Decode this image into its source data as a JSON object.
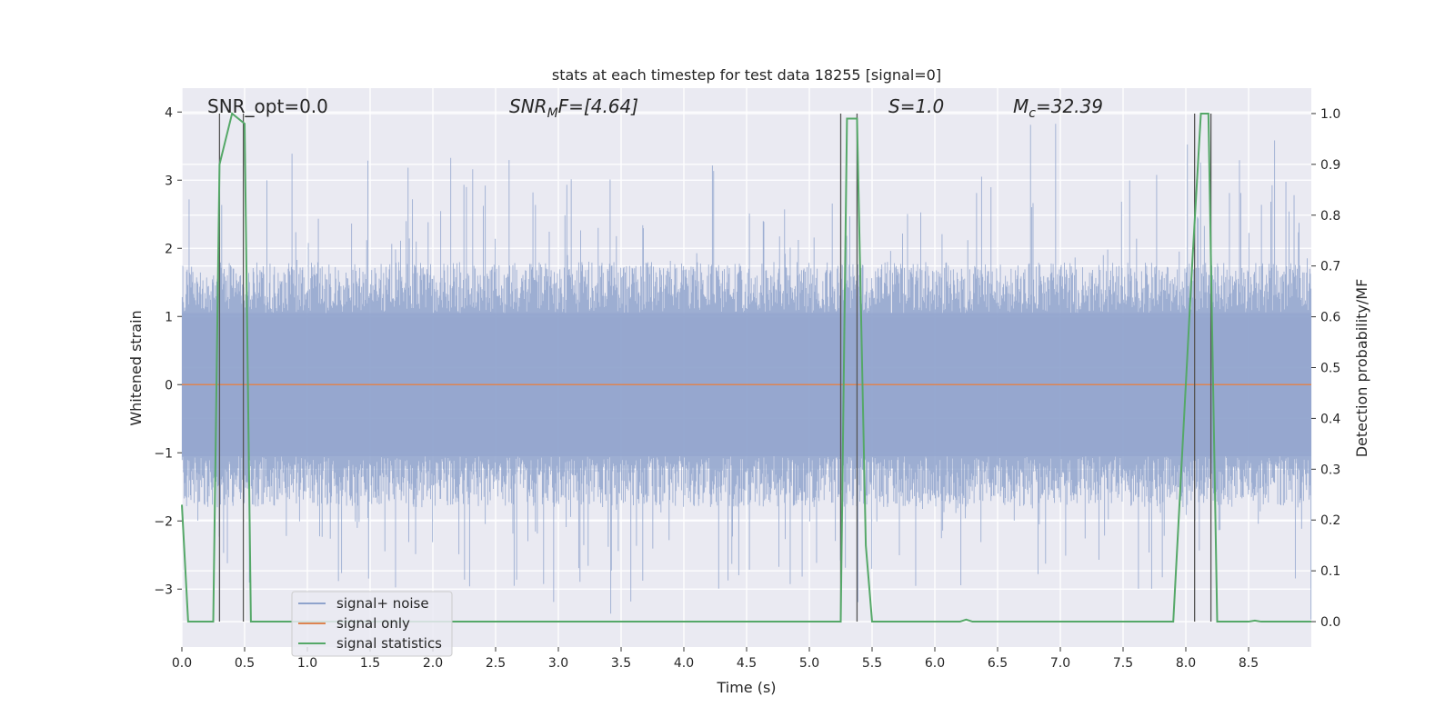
{
  "chart_data": {
    "type": "line",
    "title": "stats at each timestep for test data 18255 [signal=0]",
    "xlabel": "Time (s)",
    "ylabel_left": "Whitened strain",
    "ylabel_right": "Detection probability/MF",
    "xlim": [
      0.0,
      9.0
    ],
    "ylim_left": [
      -3.85,
      4.35
    ],
    "ylim_right": [
      -0.05,
      1.05
    ],
    "xticks": [
      "0.0",
      "0.5",
      "1.0",
      "1.5",
      "2.0",
      "2.5",
      "3.0",
      "3.5",
      "4.0",
      "4.5",
      "5.0",
      "5.5",
      "6.0",
      "6.5",
      "7.0",
      "7.5",
      "8.0",
      "8.5"
    ],
    "yticks_left": [
      "4",
      "3",
      "2",
      "1",
      "0",
      "−1",
      "−2",
      "−3"
    ],
    "yticks_right": [
      "1.0",
      "0.9",
      "0.8",
      "0.7",
      "0.6",
      "0.5",
      "0.4",
      "0.3",
      "0.2",
      "0.1",
      "0.0"
    ],
    "grid": true,
    "legend_position": "lower-left",
    "annotations": {
      "snr_opt": "SNR_opt=0.0",
      "snr_mf_base": "SNR",
      "snr_mf_sub": "M",
      "snr_mf_rest": "F=[4.64]",
      "s_label": "S=1.0",
      "mc_base": "M",
      "mc_sub": "c",
      "mc_rest": "=32.39"
    },
    "series": [
      {
        "name": "signal+ noise",
        "color": "#8fa3cc",
        "description_of_values": "whitened noise, approx. ±1.7 with spikes up to ±4"
      },
      {
        "name": "signal only",
        "color": "#dd8452",
        "x": [
          0.0,
          9.0
        ],
        "y": [
          0.0,
          0.0
        ]
      },
      {
        "name": "signal statistics",
        "color": "#55a868",
        "axis": "right",
        "x": [
          0.0,
          0.05,
          0.1,
          0.25,
          0.3,
          0.4,
          0.5,
          0.55,
          0.6,
          5.2,
          5.25,
          5.3,
          5.38,
          5.45,
          5.5,
          5.55,
          6.2,
          6.25,
          6.3,
          7.9,
          8.05,
          8.12,
          8.18,
          8.25,
          8.3,
          8.35,
          8.5,
          8.55,
          8.6,
          9.0
        ],
        "y": [
          0.23,
          0.0,
          0.0,
          0.0,
          0.9,
          1.0,
          0.98,
          0.0,
          0.0,
          0.0,
          0.0,
          0.99,
          0.99,
          0.15,
          0.0,
          0.0,
          0.0,
          0.004,
          0.0,
          0.0,
          0.7,
          1.0,
          1.0,
          0.0,
          0.0,
          0.0,
          0.0,
          0.002,
          0.0,
          0.0
        ]
      }
    ],
    "vlines": [
      0.3,
      0.49,
      5.25,
      5.38,
      8.07,
      8.2
    ]
  },
  "legend": {
    "items": [
      {
        "label": "signal+ noise",
        "color": "#8fa3cc"
      },
      {
        "label": "signal only",
        "color": "#dd8452"
      },
      {
        "label": "signal statistics",
        "color": "#55a868"
      }
    ]
  }
}
